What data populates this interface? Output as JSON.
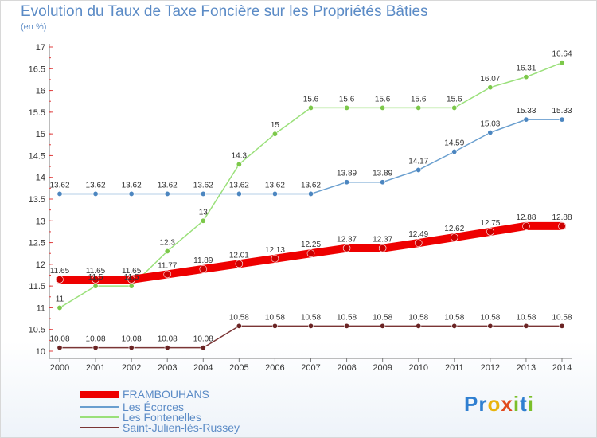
{
  "header": {
    "title": "Evolution du Taux de Taxe Foncière sur les Propriétés Bâties",
    "subtitle": "(en %)"
  },
  "logo": {
    "text": "Proxiti",
    "letters": [
      "P",
      "r",
      "o",
      "x",
      "i",
      "t",
      "i"
    ],
    "colors": [
      "#2f7fd1",
      "#2f7fd1",
      "#e8b40c",
      "#e04a1e",
      "#7bbf2a",
      "#2f7fd1",
      "#7bbf2a"
    ]
  },
  "chart_data": {
    "type": "line",
    "title": "Evolution du Taux de Taxe Foncière sur les Propriétés Bâties",
    "subtitle": "(en %)",
    "xlabel": "",
    "ylabel": "",
    "x": [
      "2000",
      "2001",
      "2002",
      "2003",
      "2004",
      "2005",
      "2006",
      "2007",
      "2008",
      "2009",
      "2010",
      "2011",
      "2012",
      "2013",
      "2014"
    ],
    "ylim": [
      10,
      17
    ],
    "yticks": [
      "10",
      "10.5",
      "11",
      "11.5",
      "12",
      "12.5",
      "13",
      "13.5",
      "14",
      "14.5",
      "15",
      "15.5",
      "16",
      "16.5",
      "17"
    ],
    "grid": false,
    "legend": "bottom-left",
    "series": [
      {
        "name": "FRAMBOUHANS",
        "color": "#ee0000",
        "width": 10,
        "marker": "#cc0000",
        "values": [
          11.65,
          11.65,
          11.65,
          11.77,
          11.89,
          12.01,
          12.13,
          12.25,
          12.37,
          12.37,
          12.49,
          12.62,
          12.75,
          12.88,
          12.88
        ],
        "labels": [
          "11.65",
          "11.65",
          "11.65",
          "11.77",
          "11.89",
          "12.01",
          "12.13",
          "12.25",
          "12.37",
          "12.37",
          "12.49",
          "12.62",
          "12.75",
          "12.88",
          "12.88"
        ]
      },
      {
        "name": "Les Écorces",
        "color": "#6a9fcf",
        "width": 1.5,
        "marker": "#4c86c0",
        "values": [
          13.62,
          13.62,
          13.62,
          13.62,
          13.62,
          13.62,
          13.62,
          13.62,
          13.89,
          13.89,
          14.17,
          14.59,
          15.03,
          15.33,
          15.33
        ],
        "labels": [
          "13.62",
          "13.62",
          "13.62",
          "13.62",
          "13.62",
          "13.62",
          "13.62",
          "13.62",
          "13.89",
          "13.89",
          "14.17",
          "14.59",
          "15.03",
          "15.33",
          "15.33"
        ]
      },
      {
        "name": "Les Fontenelles",
        "color": "#9ae07a",
        "width": 1.5,
        "marker": "#7cc84a",
        "values": [
          11,
          11.5,
          11.5,
          12.3,
          13,
          14.3,
          15,
          15.6,
          15.6,
          15.6,
          15.6,
          15.6,
          16.07,
          16.31,
          16.64
        ],
        "labels": [
          "11",
          "11.5",
          "11.5",
          "12.3",
          "13",
          "14.3",
          "15",
          "15.6",
          "15.6",
          "15.6",
          "15.6",
          "15.6",
          "16.07",
          "16.31",
          "16.64"
        ]
      },
      {
        "name": "Saint-Julien-lès-Russey",
        "color": "#7a3535",
        "width": 1.5,
        "marker": "#6b2424",
        "values": [
          10.08,
          10.08,
          10.08,
          10.08,
          10.08,
          10.58,
          10.58,
          10.58,
          10.58,
          10.58,
          10.58,
          10.58,
          10.58,
          10.58,
          10.58
        ],
        "labels": [
          "10.08",
          "10.08",
          "10.08",
          "10.08",
          "10.08",
          "10.58",
          "10.58",
          "10.58",
          "10.58",
          "10.58",
          "10.58",
          "10.58",
          "10.58",
          "10.58",
          "10.58"
        ]
      }
    ]
  }
}
